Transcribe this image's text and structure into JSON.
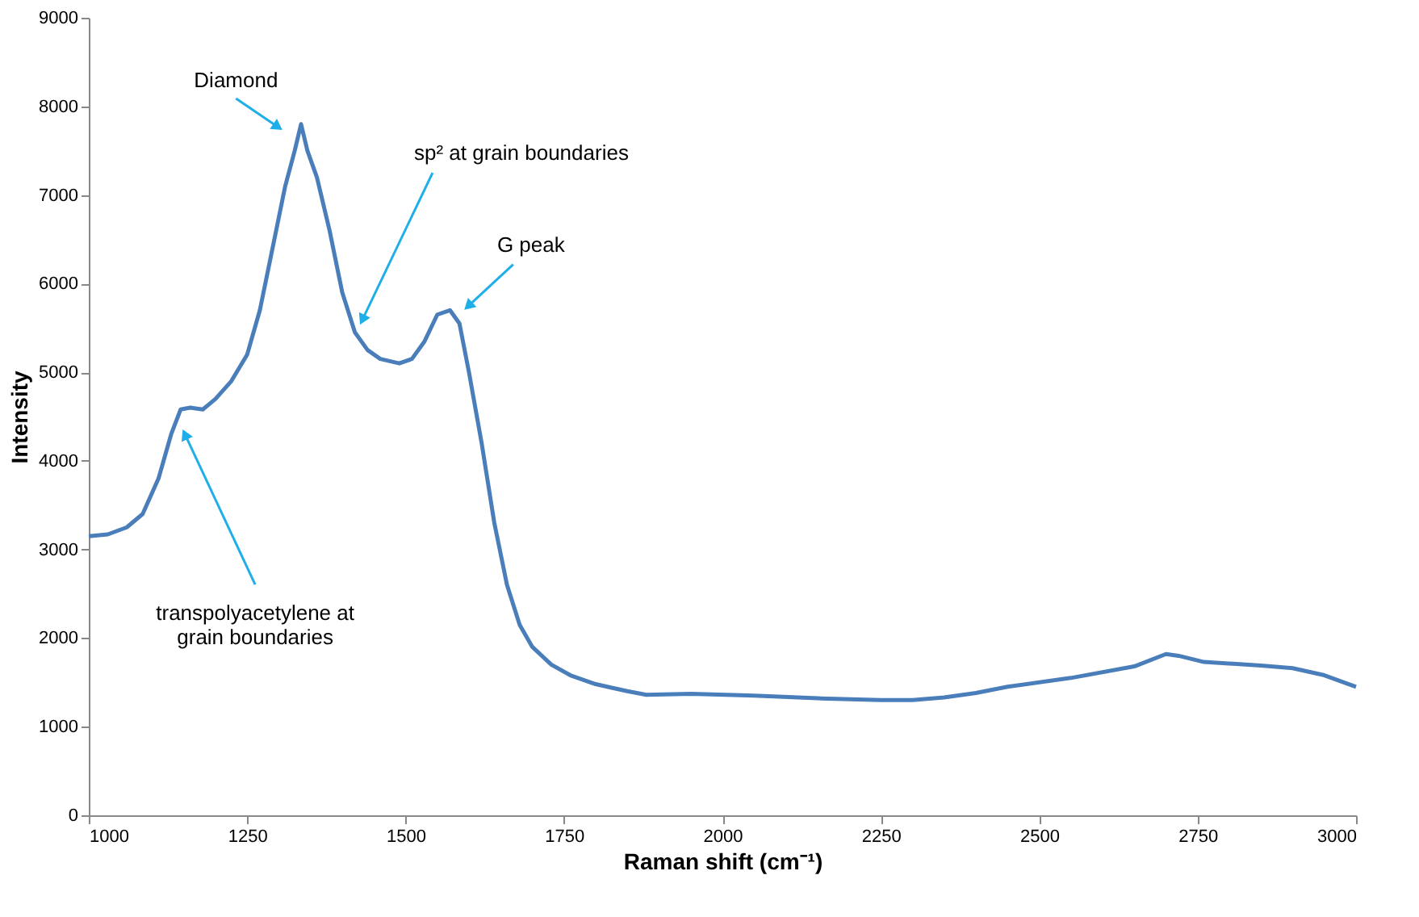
{
  "chart_data": {
    "type": "line",
    "xlabel": "Raman shift (cm⁻¹)",
    "ylabel": "Intensity",
    "xlim": [
      1000,
      3000
    ],
    "xticks": [
      1000,
      1250,
      1500,
      1750,
      2000,
      2250,
      2500,
      2750,
      3000
    ],
    "ylim": [
      0,
      9000
    ],
    "yticks": [
      0,
      1000,
      2000,
      3000,
      4000,
      5000,
      6000,
      7000,
      8000,
      9000
    ],
    "grid": false,
    "marker": "none",
    "line_style": "solid",
    "series": [
      {
        "color": "#4a7ebb",
        "x": [
          1000,
          1030,
          1060,
          1085,
          1110,
          1130,
          1145,
          1160,
          1180,
          1200,
          1225,
          1250,
          1270,
          1290,
          1310,
          1325,
          1335,
          1345,
          1360,
          1380,
          1400,
          1420,
          1440,
          1460,
          1490,
          1510,
          1530,
          1550,
          1570,
          1585,
          1600,
          1620,
          1640,
          1660,
          1680,
          1700,
          1730,
          1760,
          1800,
          1850,
          1880,
          1950,
          2050,
          2150,
          2250,
          2300,
          2350,
          2400,
          2450,
          2550,
          2650,
          2700,
          2720,
          2760,
          2850,
          2900,
          2950,
          3000
        ],
        "values": [
          3150,
          3170,
          3250,
          3400,
          3800,
          4300,
          4580,
          4600,
          4580,
          4700,
          4900,
          5200,
          5700,
          6400,
          7100,
          7500,
          7800,
          7500,
          7200,
          6600,
          5900,
          5450,
          5250,
          5150,
          5100,
          5150,
          5350,
          5650,
          5700,
          5550,
          5000,
          4200,
          3300,
          2600,
          2150,
          1900,
          1700,
          1580,
          1480,
          1400,
          1360,
          1370,
          1350,
          1320,
          1300,
          1300,
          1330,
          1380,
          1450,
          1550,
          1680,
          1820,
          1800,
          1730,
          1690,
          1660,
          1580,
          1450
        ]
      }
    ],
    "annotations": [
      {
        "text": "Diamond",
        "x": 1296,
        "y": 7780
      },
      {
        "text": "sp² at grain boundaries",
        "x": 1433,
        "y": 5610
      },
      {
        "text": "G peak",
        "x": 1601,
        "y": 5760
      },
      {
        "text": "transpolyacetylene at\ngrain boundaries",
        "x": 1153,
        "y": 4280
      }
    ]
  }
}
